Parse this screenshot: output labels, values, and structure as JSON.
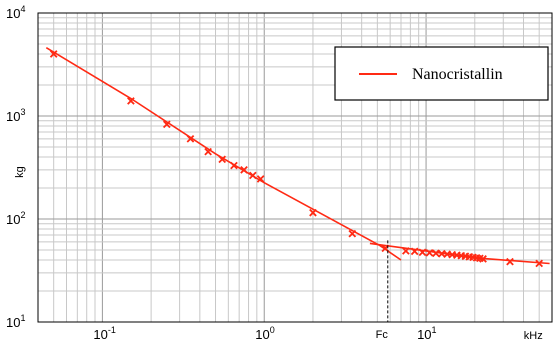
{
  "chart_data": {
    "type": "line",
    "x_scale": "log",
    "y_scale": "log",
    "xlim": [
      0.04,
      60
    ],
    "ylim": [
      10,
      10000
    ],
    "xlabel": "kHz",
    "ylabel": "kg",
    "grid": true,
    "legend_position": "top-right",
    "colors": {
      "series": "#ff2a14",
      "grid": "#c8c8c8",
      "axis": "#000000"
    },
    "x_ticks": [
      {
        "value": 0.1,
        "base": "10",
        "exp": "-1"
      },
      {
        "value": 1,
        "base": "10",
        "exp": "0"
      },
      {
        "value": 10,
        "base": "10",
        "exp": "1"
      }
    ],
    "y_ticks": [
      {
        "value": 10,
        "base": "10",
        "exp": "1"
      },
      {
        "value": 100,
        "base": "10",
        "exp": "2"
      },
      {
        "value": 1000,
        "base": "10",
        "exp": "3"
      },
      {
        "value": 10000,
        "base": "10",
        "exp": "4"
      }
    ],
    "annotations": [
      {
        "label": "Fc",
        "x": 5.8
      }
    ],
    "series": [
      {
        "name": "Nanocristallin",
        "line_segments": [
          [
            [
              0.045,
              4600
            ],
            [
              0.15,
              1480
            ],
            [
              0.5,
              430
            ],
            [
              1.0,
              225
            ],
            [
              5.2,
              55
            ],
            [
              7.0,
              40
            ]
          ],
          [
            [
              4.5,
              58
            ],
            [
              10,
              49
            ],
            [
              20,
              42
            ],
            [
              58,
              37
            ]
          ]
        ],
        "markers": [
          [
            0.05,
            4000
          ],
          [
            0.15,
            1400
          ],
          [
            0.25,
            830
          ],
          [
            0.35,
            600
          ],
          [
            0.45,
            450
          ],
          [
            0.55,
            380
          ],
          [
            0.65,
            330
          ],
          [
            0.75,
            300
          ],
          [
            0.85,
            265
          ],
          [
            0.95,
            245
          ],
          [
            2.0,
            115
          ],
          [
            3.5,
            72
          ],
          [
            5.6,
            52
          ],
          [
            7.5,
            49
          ],
          [
            8.5,
            48.5
          ],
          [
            9.5,
            47.5
          ],
          [
            10.5,
            47
          ],
          [
            11.5,
            46.5
          ],
          [
            12.5,
            46
          ],
          [
            13.5,
            45.5
          ],
          [
            14.5,
            45
          ],
          [
            15.5,
            44.5
          ],
          [
            16.5,
            44
          ],
          [
            17.5,
            43.5
          ],
          [
            18.5,
            43
          ],
          [
            19.5,
            42.5
          ],
          [
            20.5,
            42
          ],
          [
            21.5,
            41.5
          ],
          [
            22.5,
            41
          ],
          [
            33,
            38.5
          ],
          [
            50,
            37
          ]
        ]
      }
    ]
  }
}
